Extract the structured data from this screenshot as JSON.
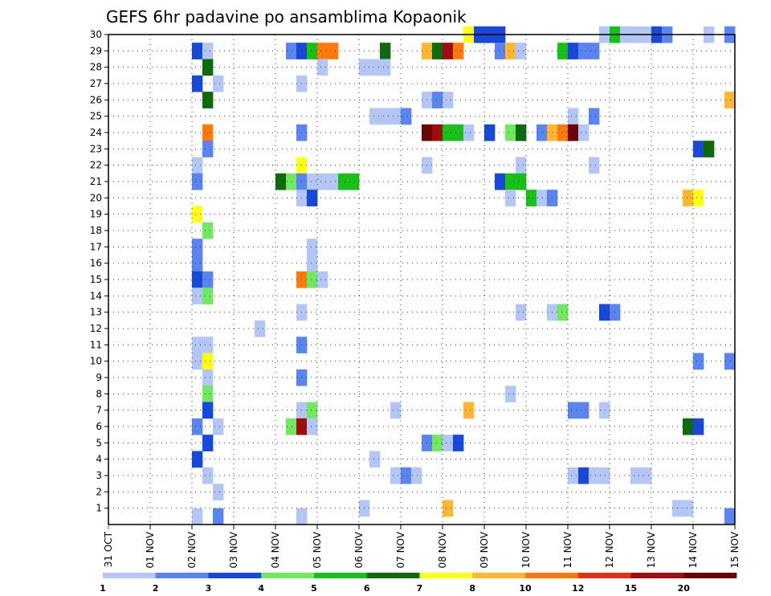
{
  "chart_data": {
    "type": "heatmap",
    "title": "GEFS 6hr padavine po ansamblima Kopaonik",
    "y_tick_labels": [
      "1",
      "2",
      "3",
      "4",
      "5",
      "6",
      "7",
      "8",
      "9",
      "10",
      "11",
      "12",
      "13",
      "14",
      "15",
      "16",
      "17",
      "18",
      "19",
      "20",
      "21",
      "22",
      "23",
      "24",
      "25",
      "26",
      "27",
      "28",
      "29",
      "30"
    ],
    "x_tick_labels": [
      "31 OCT",
      "01 NOV",
      "02 NOV",
      "03 NOV",
      "04 NOV",
      "05 NOV",
      "06 NOV",
      "07 NOV",
      "08 NOV",
      "09 NOV",
      "10 NOV",
      "11 NOV",
      "12 NOV",
      "13 NOV",
      "14 NOV",
      "15 NOV"
    ],
    "x_range_days": [
      0,
      15
    ],
    "y_range": [
      0,
      30
    ],
    "grid": true,
    "colorbar": {
      "labels": [
        "1",
        "2",
        "3",
        "4",
        "5",
        "6",
        "7",
        "8",
        "10",
        "12",
        "15",
        "20"
      ],
      "colors": [
        "#b3c6f5",
        "#5a84ef",
        "#1749d8",
        "#72e860",
        "#18c118",
        "#0d6a0d",
        "#ffff14",
        "#ffb733",
        "#ff7a0a",
        "#e33018",
        "#a10d0d",
        "#6b0505"
      ]
    },
    "cells": [
      {
        "m": 30,
        "t": 8.5,
        "c": 6
      },
      {
        "m": 30,
        "t": 8.75,
        "c": 2
      },
      {
        "m": 30,
        "t": 9.0,
        "c": 2
      },
      {
        "m": 30,
        "t": 9.25,
        "c": 2
      },
      {
        "m": 30,
        "t": 11.75,
        "c": 0
      },
      {
        "m": 30,
        "t": 12.0,
        "c": 4
      },
      {
        "m": 30,
        "t": 12.25,
        "c": 0
      },
      {
        "m": 30,
        "t": 12.5,
        "c": 0
      },
      {
        "m": 30,
        "t": 12.75,
        "c": 0
      },
      {
        "m": 30,
        "t": 13.0,
        "c": 2
      },
      {
        "m": 30,
        "t": 13.25,
        "c": 1
      },
      {
        "m": 30,
        "t": 14.25,
        "c": 0
      },
      {
        "m": 30,
        "t": 14.75,
        "c": 1
      },
      {
        "m": 29,
        "t": 2.0,
        "c": 2
      },
      {
        "m": 29,
        "t": 2.25,
        "c": 0
      },
      {
        "m": 29,
        "t": 4.25,
        "c": 1
      },
      {
        "m": 29,
        "t": 4.5,
        "c": 2
      },
      {
        "m": 29,
        "t": 4.75,
        "c": 4
      },
      {
        "m": 29,
        "t": 5.0,
        "c": 8
      },
      {
        "m": 29,
        "t": 5.25,
        "c": 8
      },
      {
        "m": 29,
        "t": 6.5,
        "c": 5
      },
      {
        "m": 29,
        "t": 7.5,
        "c": 7
      },
      {
        "m": 29,
        "t": 7.75,
        "c": 5
      },
      {
        "m": 29,
        "t": 8.0,
        "c": 10
      },
      {
        "m": 29,
        "t": 8.25,
        "c": 8
      },
      {
        "m": 29,
        "t": 9.25,
        "c": 1
      },
      {
        "m": 29,
        "t": 9.5,
        "c": 7
      },
      {
        "m": 29,
        "t": 9.75,
        "c": 0
      },
      {
        "m": 29,
        "t": 10.75,
        "c": 4
      },
      {
        "m": 29,
        "t": 11.0,
        "c": 2
      },
      {
        "m": 29,
        "t": 11.25,
        "c": 1
      },
      {
        "m": 29,
        "t": 11.5,
        "c": 1
      },
      {
        "m": 28,
        "t": 2.25,
        "c": 5
      },
      {
        "m": 28,
        "t": 5.0,
        "c": 0
      },
      {
        "m": 28,
        "t": 6.0,
        "c": 0
      },
      {
        "m": 28,
        "t": 6.25,
        "c": 0
      },
      {
        "m": 28,
        "t": 6.5,
        "c": 0
      },
      {
        "m": 27,
        "t": 2.0,
        "c": 2
      },
      {
        "m": 27,
        "t": 2.5,
        "c": 0
      },
      {
        "m": 27,
        "t": 4.5,
        "c": 0
      },
      {
        "m": 26,
        "t": 2.25,
        "c": 5
      },
      {
        "m": 26,
        "t": 7.5,
        "c": 0
      },
      {
        "m": 26,
        "t": 7.75,
        "c": 1
      },
      {
        "m": 26,
        "t": 8.0,
        "c": 0
      },
      {
        "m": 26,
        "t": 14.75,
        "c": 7
      },
      {
        "m": 25,
        "t": 6.25,
        "c": 0
      },
      {
        "m": 25,
        "t": 6.5,
        "c": 0
      },
      {
        "m": 25,
        "t": 6.75,
        "c": 0
      },
      {
        "m": 25,
        "t": 7.0,
        "c": 1
      },
      {
        "m": 25,
        "t": 11.0,
        "c": 0
      },
      {
        "m": 25,
        "t": 11.5,
        "c": 1
      },
      {
        "m": 24,
        "t": 2.25,
        "c": 8
      },
      {
        "m": 24,
        "t": 4.5,
        "c": 1
      },
      {
        "m": 24,
        "t": 7.5,
        "c": 11
      },
      {
        "m": 24,
        "t": 7.75,
        "c": 10
      },
      {
        "m": 24,
        "t": 8.0,
        "c": 4
      },
      {
        "m": 24,
        "t": 8.25,
        "c": 4
      },
      {
        "m": 24,
        "t": 8.5,
        "c": 0
      },
      {
        "m": 24,
        "t": 9.0,
        "c": 2
      },
      {
        "m": 24,
        "t": 9.5,
        "c": 3
      },
      {
        "m": 24,
        "t": 9.75,
        "c": 5
      },
      {
        "m": 24,
        "t": 10.25,
        "c": 1
      },
      {
        "m": 24,
        "t": 10.5,
        "c": 7
      },
      {
        "m": 24,
        "t": 10.75,
        "c": 8
      },
      {
        "m": 24,
        "t": 11.0,
        "c": 11
      },
      {
        "m": 24,
        "t": 11.25,
        "c": 0
      },
      {
        "m": 23,
        "t": 2.25,
        "c": 1
      },
      {
        "m": 23,
        "t": 14.0,
        "c": 2
      },
      {
        "m": 23,
        "t": 14.25,
        "c": 5
      },
      {
        "m": 22,
        "t": 2.0,
        "c": 0
      },
      {
        "m": 22,
        "t": 4.5,
        "c": 6
      },
      {
        "m": 22,
        "t": 7.5,
        "c": 0
      },
      {
        "m": 22,
        "t": 9.75,
        "c": 0
      },
      {
        "m": 22,
        "t": 11.5,
        "c": 0
      },
      {
        "m": 21,
        "t": 2.0,
        "c": 1
      },
      {
        "m": 21,
        "t": 4.0,
        "c": 5
      },
      {
        "m": 21,
        "t": 4.25,
        "c": 3
      },
      {
        "m": 21,
        "t": 4.5,
        "c": 1
      },
      {
        "m": 21,
        "t": 4.75,
        "c": 0
      },
      {
        "m": 21,
        "t": 5.0,
        "c": 0
      },
      {
        "m": 21,
        "t": 5.25,
        "c": 0
      },
      {
        "m": 21,
        "t": 5.5,
        "c": 4
      },
      {
        "m": 21,
        "t": 5.75,
        "c": 4
      },
      {
        "m": 21,
        "t": 9.25,
        "c": 2
      },
      {
        "m": 21,
        "t": 9.5,
        "c": 4
      },
      {
        "m": 21,
        "t": 9.75,
        "c": 4
      },
      {
        "m": 20,
        "t": 4.5,
        "c": 0
      },
      {
        "m": 20,
        "t": 4.75,
        "c": 2
      },
      {
        "m": 20,
        "t": 9.5,
        "c": 0
      },
      {
        "m": 20,
        "t": 10.0,
        "c": 4
      },
      {
        "m": 20,
        "t": 10.25,
        "c": 0
      },
      {
        "m": 20,
        "t": 10.5,
        "c": 1
      },
      {
        "m": 20,
        "t": 13.75,
        "c": 7
      },
      {
        "m": 20,
        "t": 14.0,
        "c": 6
      },
      {
        "m": 19,
        "t": 2.0,
        "c": 6
      },
      {
        "m": 18,
        "t": 2.25,
        "c": 3
      },
      {
        "m": 17,
        "t": 2.0,
        "c": 1
      },
      {
        "m": 17,
        "t": 4.75,
        "c": 0
      },
      {
        "m": 16,
        "t": 2.0,
        "c": 1
      },
      {
        "m": 16,
        "t": 4.75,
        "c": 0
      },
      {
        "m": 15,
        "t": 2.0,
        "c": 2
      },
      {
        "m": 15,
        "t": 2.25,
        "c": 1
      },
      {
        "m": 15,
        "t": 4.5,
        "c": 8
      },
      {
        "m": 15,
        "t": 4.75,
        "c": 3
      },
      {
        "m": 15,
        "t": 5.0,
        "c": 0
      },
      {
        "m": 14,
        "t": 2.0,
        "c": 0
      },
      {
        "m": 14,
        "t": 2.25,
        "c": 3
      },
      {
        "m": 13,
        "t": 4.5,
        "c": 0
      },
      {
        "m": 13,
        "t": 9.75,
        "c": 0
      },
      {
        "m": 13,
        "t": 10.5,
        "c": 0
      },
      {
        "m": 13,
        "t": 10.75,
        "c": 3
      },
      {
        "m": 13,
        "t": 11.75,
        "c": 2
      },
      {
        "m": 13,
        "t": 12.0,
        "c": 1
      },
      {
        "m": 12,
        "t": 3.5,
        "c": 0
      },
      {
        "m": 11,
        "t": 2.0,
        "c": 0
      },
      {
        "m": 11,
        "t": 2.25,
        "c": 0
      },
      {
        "m": 11,
        "t": 4.5,
        "c": 1
      },
      {
        "m": 10,
        "t": 2.0,
        "c": 0
      },
      {
        "m": 10,
        "t": 2.25,
        "c": 6
      },
      {
        "m": 10,
        "t": 14.0,
        "c": 1
      },
      {
        "m": 10,
        "t": 14.75,
        "c": 1
      },
      {
        "m": 9,
        "t": 2.25,
        "c": 0
      },
      {
        "m": 9,
        "t": 4.5,
        "c": 1
      },
      {
        "m": 8,
        "t": 2.25,
        "c": 3
      },
      {
        "m": 8,
        "t": 9.5,
        "c": 0
      },
      {
        "m": 7,
        "t": 2.25,
        "c": 2
      },
      {
        "m": 7,
        "t": 4.5,
        "c": 0
      },
      {
        "m": 7,
        "t": 4.75,
        "c": 3
      },
      {
        "m": 7,
        "t": 6.75,
        "c": 0
      },
      {
        "m": 7,
        "t": 8.5,
        "c": 7
      },
      {
        "m": 7,
        "t": 11.0,
        "c": 1
      },
      {
        "m": 7,
        "t": 11.25,
        "c": 1
      },
      {
        "m": 7,
        "t": 11.75,
        "c": 0
      },
      {
        "m": 6,
        "t": 2.0,
        "c": 1
      },
      {
        "m": 6,
        "t": 2.5,
        "c": 0
      },
      {
        "m": 6,
        "t": 4.25,
        "c": 3
      },
      {
        "m": 6,
        "t": 4.5,
        "c": 10
      },
      {
        "m": 6,
        "t": 4.75,
        "c": 0
      },
      {
        "m": 6,
        "t": 13.75,
        "c": 5
      },
      {
        "m": 6,
        "t": 14.0,
        "c": 2
      },
      {
        "m": 5,
        "t": 2.25,
        "c": 2
      },
      {
        "m": 5,
        "t": 7.5,
        "c": 1
      },
      {
        "m": 5,
        "t": 7.75,
        "c": 3
      },
      {
        "m": 5,
        "t": 8.0,
        "c": 0
      },
      {
        "m": 5,
        "t": 8.25,
        "c": 2
      },
      {
        "m": 4,
        "t": 2.0,
        "c": 2
      },
      {
        "m": 4,
        "t": 6.25,
        "c": 0
      },
      {
        "m": 3,
        "t": 2.25,
        "c": 0
      },
      {
        "m": 3,
        "t": 6.75,
        "c": 0
      },
      {
        "m": 3,
        "t": 7.0,
        "c": 1
      },
      {
        "m": 3,
        "t": 7.25,
        "c": 0
      },
      {
        "m": 3,
        "t": 11.0,
        "c": 0
      },
      {
        "m": 3,
        "t": 11.25,
        "c": 2
      },
      {
        "m": 3,
        "t": 11.5,
        "c": 0
      },
      {
        "m": 3,
        "t": 11.75,
        "c": 0
      },
      {
        "m": 3,
        "t": 12.5,
        "c": 0
      },
      {
        "m": 3,
        "t": 12.75,
        "c": 0
      },
      {
        "m": 2,
        "t": 2.5,
        "c": 0
      },
      {
        "m": 1,
        "t": 6.0,
        "c": 0
      },
      {
        "m": 1,
        "t": 8.0,
        "c": 7
      },
      {
        "m": 1,
        "t": 13.5,
        "c": 0
      },
      {
        "m": 1,
        "t": 13.75,
        "c": 0
      },
      {
        "m": 0.5,
        "t": 2.0,
        "c": 0
      },
      {
        "m": 0.5,
        "t": 2.5,
        "c": 1
      },
      {
        "m": 0.5,
        "t": 4.5,
        "c": 0
      },
      {
        "m": 0.5,
        "t": 14.75,
        "c": 1
      }
    ]
  }
}
